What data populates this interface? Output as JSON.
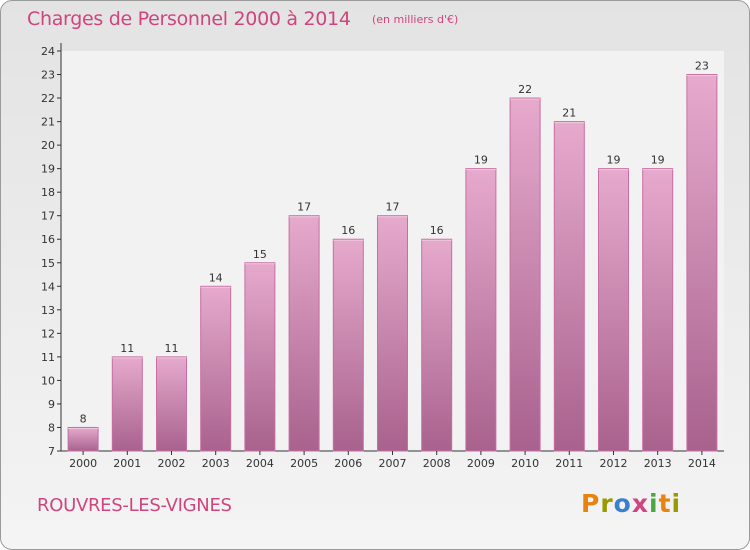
{
  "header": {
    "title": "Charges de Personnel 2000 à 2014",
    "subtitle": "(en milliers d'€)"
  },
  "footer": {
    "commune": "ROUVRES-LES-VIGNES",
    "logo": "Proxiti",
    "logo_colors": [
      "#e8830e",
      "#9a9a00",
      "#3a7fd0",
      "#d0457f",
      "#49a844",
      "#e8830e",
      "#9a9a00"
    ]
  },
  "colors": {
    "title": "#d0457f",
    "bar_top": "#e6aacd",
    "bar_bottom": "#a8628d",
    "bar_edge": "#c86ea2"
  },
  "chart_data": {
    "type": "bar",
    "categories": [
      "2000",
      "2001",
      "2002",
      "2003",
      "2004",
      "2005",
      "2006",
      "2007",
      "2008",
      "2009",
      "2010",
      "2011",
      "2012",
      "2013",
      "2014"
    ],
    "values": [
      8,
      11,
      11,
      14,
      15,
      17,
      16,
      17,
      16,
      19,
      22,
      21,
      19,
      19,
      23
    ],
    "data_labels": [
      "8",
      "11",
      "11",
      "14",
      "15",
      "17",
      "16",
      "17",
      "16",
      "19",
      "22",
      "21",
      "19",
      "19",
      "23"
    ],
    "ylim": [
      7,
      24
    ],
    "yticks": [
      7,
      8,
      9,
      10,
      11,
      12,
      13,
      14,
      15,
      16,
      17,
      18,
      19,
      20,
      21,
      22,
      23,
      24
    ],
    "grid": false
  }
}
